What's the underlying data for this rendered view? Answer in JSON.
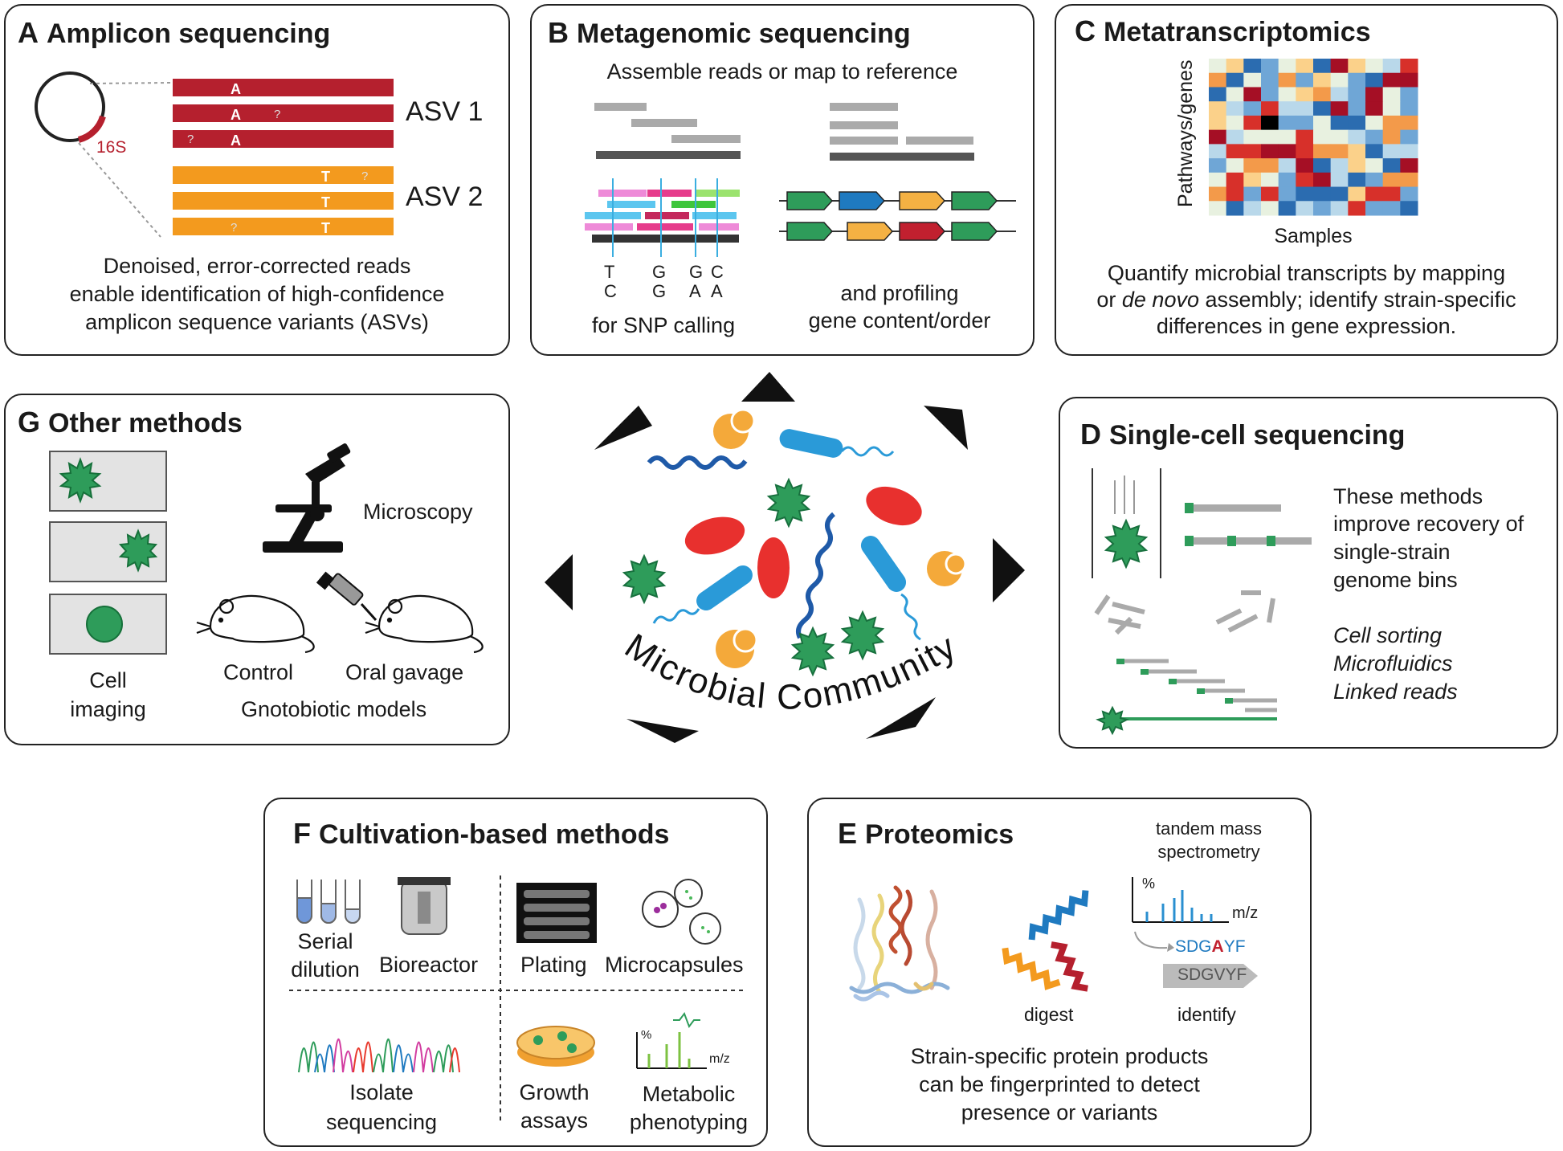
{
  "panels": {
    "A": {
      "letter": "A",
      "title": "Amplicon sequencing",
      "region_label": "16S",
      "asv1": "ASV 1",
      "asv2": "ASV 2",
      "caption": [
        "Denoised, error-corrected reads",
        "enable identification of high-confidence",
        "amplicon sequence variants (ASVs)"
      ]
    },
    "B": {
      "letter": "B",
      "title": "Metagenomic sequencing",
      "subtitle": "Assemble reads or map to reference",
      "snp_top": [
        "T",
        "G",
        "G",
        "C"
      ],
      "snp_bottom": [
        "C",
        "G",
        "A",
        "A"
      ],
      "snp_caption": "for SNP calling",
      "profile_caption": [
        "and profiling",
        "gene content/order"
      ]
    },
    "C": {
      "letter": "C",
      "title": "Metatranscriptomics",
      "ylabel": "Pathways/genes",
      "xlabel": "Samples",
      "caption_1": "Quantify microbial transcripts by mapping",
      "caption_2a": "or ",
      "caption_2b": "de novo",
      "caption_2c": " assembly; identify strain-specific",
      "caption_3": "differences in gene expression."
    },
    "D": {
      "letter": "D",
      "title": "Single-cell sequencing",
      "desc": [
        "These methods",
        "improve recovery of",
        "single-strain",
        "genome bins"
      ],
      "methods": [
        "Cell sorting",
        "Microfluidics",
        "Linked reads"
      ]
    },
    "E": {
      "letter": "E",
      "title": "Proteomics",
      "ms_label": [
        "tandem mass",
        "spectrometry"
      ],
      "pct": "%",
      "mz": "m/z",
      "seq1_a": "SDG",
      "seq1_b": "A",
      "seq1_c": "YF",
      "seq2": "SDGVYF",
      "digest": "digest",
      "identify": "identify",
      "caption": [
        "Strain-specific protein products",
        "can be fingerprinted to detect",
        "presence or variants"
      ]
    },
    "F": {
      "letter": "F",
      "title": "Cultivation-based methods",
      "serial": [
        "Serial",
        "dilution"
      ],
      "bioreactor": "Bioreactor",
      "plating": "Plating",
      "microcapsules": "Microcapsules",
      "isolate": [
        "Isolate",
        "sequencing"
      ],
      "growth": [
        "Growth",
        "assays"
      ],
      "metabolic": [
        "Metabolic",
        "phenotyping"
      ],
      "pct": "%",
      "mz": "m/z"
    },
    "G": {
      "letter": "G",
      "title": "Other methods",
      "microscopy": "Microscopy",
      "control": "Control",
      "gavage": "Oral gavage",
      "gnoto": "Gnotobiotic models",
      "cell_imaging": [
        "Cell",
        "imaging"
      ]
    }
  },
  "center": {
    "label": "Microbial Community"
  },
  "colors": {
    "red": "#b5202e",
    "orange": "#f39a1e",
    "green": "#2e9c5a",
    "blue": "#1f7ac0",
    "pink": "#e63c8c",
    "gray": "#aaaaaa",
    "dark": "#444444"
  }
}
